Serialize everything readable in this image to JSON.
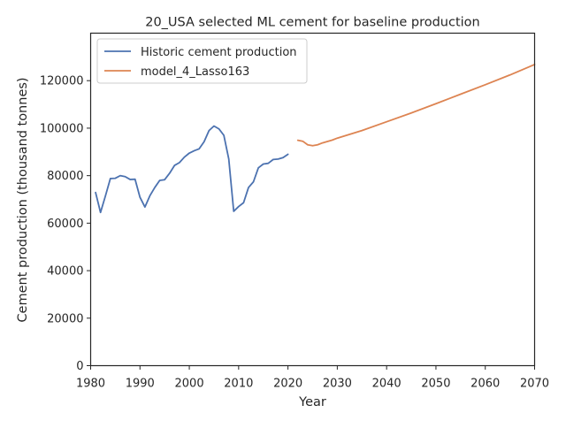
{
  "chart_data": {
    "type": "line",
    "title": "20_USA selected ML cement for baseline production",
    "xlabel": "Year",
    "ylabel": "Cement production (thousand tonnes)",
    "xlim": [
      1980,
      2070
    ],
    "ylim": [
      0,
      140000
    ],
    "x_ticks": [
      1980,
      1990,
      2000,
      2010,
      2020,
      2030,
      2040,
      2050,
      2060,
      2070
    ],
    "y_ticks": [
      0,
      20000,
      40000,
      60000,
      80000,
      100000,
      120000
    ],
    "grid": false,
    "legend_position": "top-left",
    "series": [
      {
        "name": "Historic cement production",
        "color": "#4c72b0",
        "x": [
          1981,
          1982,
          1983,
          1984,
          1985,
          1986,
          1987,
          1988,
          1989,
          1990,
          1991,
          1992,
          1993,
          1994,
          1995,
          1996,
          1997,
          1998,
          1999,
          2000,
          2001,
          2002,
          2003,
          2004,
          2005,
          2006,
          2007,
          2008,
          2009,
          2010,
          2011,
          2012,
          2013,
          2014,
          2015,
          2016,
          2017,
          2018,
          2019,
          2020
        ],
        "y": [
          72900,
          64500,
          71500,
          78800,
          78900,
          80000,
          79600,
          78400,
          78500,
          70900,
          66800,
          71500,
          75000,
          78000,
          78300,
          81000,
          84300,
          85500,
          87800,
          89500,
          90500,
          91300,
          94300,
          99000,
          100900,
          99700,
          97000,
          87000,
          65000,
          67000,
          68600,
          75000,
          77400,
          83300,
          84900,
          85200,
          86800,
          87000,
          87600,
          89000
        ]
      },
      {
        "name": "model_4_Lasso163",
        "color": "#dd8452",
        "x": [
          2022,
          2023,
          2024,
          2025,
          2026,
          2027,
          2028,
          2029,
          2030,
          2035,
          2040,
          2045,
          2050,
          2055,
          2060,
          2065,
          2070
        ],
        "y": [
          94900,
          94500,
          93000,
          92600,
          93000,
          93800,
          94400,
          95000,
          95800,
          99000,
          102700,
          106400,
          110300,
          114300,
          118300,
          122400,
          126800
        ]
      }
    ]
  }
}
